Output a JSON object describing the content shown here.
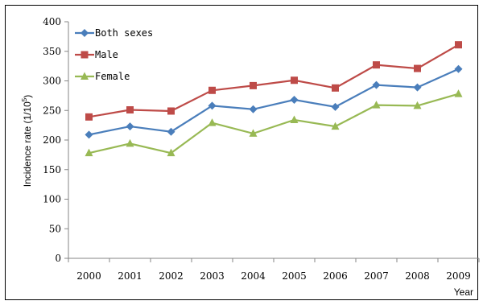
{
  "chart_data": {
    "type": "line",
    "title": "",
    "xlabel": "Year",
    "ylabel_main": "Incidence rate (1/10",
    "ylabel_sup": "5",
    "ylabel_close": ")",
    "ylim": [
      0,
      400
    ],
    "yticks": [
      0,
      50,
      100,
      150,
      200,
      250,
      300,
      350,
      400
    ],
    "categories": [
      "2000",
      "2001",
      "2002",
      "2003",
      "2004",
      "2005",
      "2006",
      "2007",
      "2008",
      "2009"
    ],
    "grid": false,
    "legend_position": "top-left",
    "series": [
      {
        "name": "Both sexes",
        "color": "#4a7ebb",
        "marker": "diamond",
        "values": [
          209,
          223,
          214,
          258,
          252,
          268,
          256,
          293,
          289,
          320
        ]
      },
      {
        "name": "Male",
        "color": "#be4b48",
        "marker": "square",
        "values": [
          239,
          251,
          249,
          284,
          292,
          301,
          288,
          327,
          321,
          361
        ]
      },
      {
        "name": "Female",
        "color": "#98b954",
        "marker": "triangle",
        "values": [
          178,
          194,
          178,
          229,
          211,
          234,
          223,
          259,
          258,
          278
        ]
      }
    ]
  }
}
